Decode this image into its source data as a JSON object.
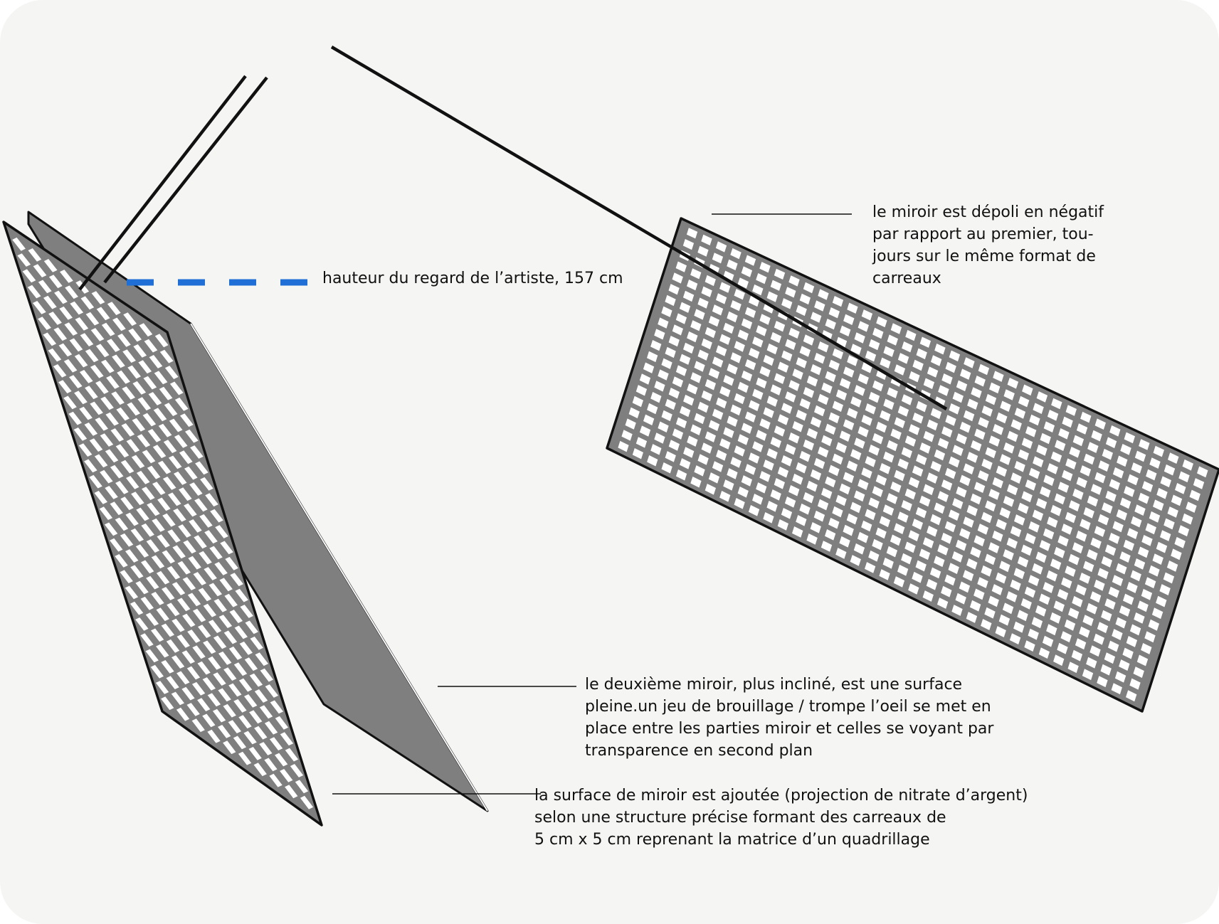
{
  "diagram": {
    "colors": {
      "background": "#f5f6f3",
      "panel_fill": "#7f7f80",
      "stroke": "#111111",
      "tile": "#ffffff",
      "eye_level": "#1f6fd6"
    },
    "grid": {
      "first_mirror": {
        "rows": 30,
        "cols": 10,
        "tile_fraction": 0.58,
        "pattern": "diamond"
      },
      "third_mirror": {
        "rows": 20,
        "cols": 36,
        "tile_fraction": 0.6,
        "pattern": "square"
      }
    },
    "annotations": {
      "eye_level": "hauteur du regard de l’artiste, 157 cm",
      "third_mirror": "le miroir est dépoli en négatif\npar rapport au premier, tou-\njours sur le même format de\ncarreaux",
      "second_mirror": "le deuxième miroir, plus incliné, est une surface\npleine.un jeu de brouillage / trompe l’oeil se met en\nplace entre les parties miroir et celles se voyant par\ntransparence en second plan",
      "first_mirror": "la surface de miroir est ajoutée (projection de nitrate d’argent)\nselon une structure précise formant des carreaux de\n5 cm x 5 cm reprenant la matrice d’un quadrillage"
    }
  }
}
